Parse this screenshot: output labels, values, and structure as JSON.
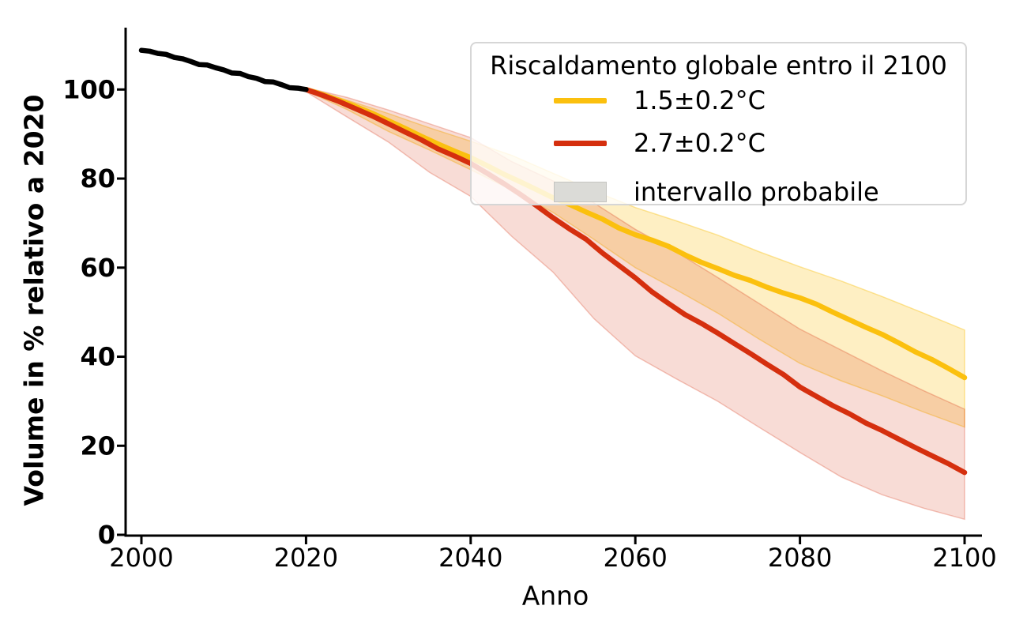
{
  "chart_data": {
    "type": "line",
    "title": "",
    "xlabel": "Anno",
    "ylabel": "Volume in % relativo a 2020",
    "xlim": [
      1998,
      2102
    ],
    "ylim": [
      0,
      114
    ],
    "x_ticks": [
      2000,
      2020,
      2040,
      2060,
      2080,
      2100
    ],
    "y_ticks": [
      0,
      20,
      40,
      60,
      80,
      100
    ],
    "grid": false,
    "axis_color": "#000000",
    "legend": {
      "title": "Riscaldamento globale entro il 2100",
      "position": "upper right",
      "entries": [
        {
          "label": "1.5±0.2°C",
          "type": "line",
          "color": "#FBC00E"
        },
        {
          "label": "2.7±0.2°C",
          "type": "line",
          "color": "#D52F0E"
        },
        {
          "label": "intervallo probabile",
          "type": "patch",
          "color": "#DBDBD7",
          "edge_color": "#C4C4C0"
        }
      ]
    },
    "series": [
      {
        "name": "volume osservato 2000-2020",
        "color": "#000000",
        "x": [
          2000,
          2001,
          2002,
          2003,
          2004,
          2005,
          2006,
          2007,
          2008,
          2009,
          2010,
          2011,
          2012,
          2013,
          2014,
          2015,
          2016,
          2017,
          2018,
          2019,
          2020
        ],
        "y": [
          108.8,
          108.6,
          108.1,
          107.9,
          107.2,
          106.9,
          106.3,
          105.6,
          105.5,
          104.9,
          104.4,
          103.7,
          103.6,
          102.9,
          102.5,
          101.8,
          101.7,
          101.1,
          100.4,
          100.3,
          100.0
        ]
      },
      {
        "name": "proiezione 1.5±0.2°C",
        "color": "#FBC00E",
        "x": [
          2020,
          2022,
          2024,
          2026,
          2028,
          2030,
          2032,
          2034,
          2036,
          2038,
          2040,
          2042,
          2044,
          2046,
          2048,
          2050,
          2052,
          2054,
          2056,
          2058,
          2060,
          2062,
          2064,
          2066,
          2068,
          2070,
          2072,
          2074,
          2076,
          2078,
          2080,
          2082,
          2084,
          2086,
          2088,
          2090,
          2092,
          2094,
          2096,
          2098,
          2100
        ],
        "y": [
          100.0,
          98.9,
          97.6,
          96.2,
          94.7,
          93.0,
          91.3,
          89.5,
          87.8,
          86.2,
          84.7,
          82.9,
          81.0,
          79.3,
          77.5,
          75.7,
          74.2,
          72.5,
          70.9,
          68.9,
          67.4,
          66.2,
          64.8,
          62.9,
          61.2,
          59.8,
          58.3,
          57.1,
          55.6,
          54.3,
          53.2,
          51.8,
          50.0,
          48.3,
          46.6,
          45.0,
          43.1,
          41.1,
          39.4,
          37.4,
          35.3
        ],
        "band": {
          "x": [
            2020,
            2025,
            2030,
            2035,
            2040,
            2045,
            2050,
            2055,
            2060,
            2065,
            2070,
            2075,
            2080,
            2085,
            2090,
            2095,
            2100
          ],
          "upper": [
            100.3,
            97.6,
            94.6,
            91.4,
            88.4,
            85.2,
            81.2,
            77.2,
            73.5,
            70.5,
            67.3,
            63.6,
            60.2,
            57.0,
            53.5,
            49.8,
            46.0
          ],
          "lower": [
            99.7,
            95.5,
            90.6,
            86.4,
            82.0,
            77.4,
            72.4,
            66.3,
            60.0,
            55.0,
            49.8,
            44.0,
            38.5,
            34.6,
            31.2,
            27.6,
            24.2
          ],
          "fill_color": "#FBC00E",
          "fill_opacity": 0.25
        }
      },
      {
        "name": "proiezione 2.7±0.2°C",
        "color": "#D52F0E",
        "x": [
          2020,
          2022,
          2024,
          2026,
          2028,
          2030,
          2032,
          2034,
          2036,
          2038,
          2040,
          2042,
          2044,
          2046,
          2048,
          2050,
          2052,
          2054,
          2056,
          2058,
          2060,
          2062,
          2064,
          2066,
          2068,
          2070,
          2072,
          2074,
          2076,
          2078,
          2080,
          2082,
          2084,
          2086,
          2088,
          2090,
          2092,
          2094,
          2096,
          2098,
          2100
        ],
        "y": [
          100.0,
          98.7,
          97.3,
          95.7,
          94.1,
          92.3,
          90.5,
          88.7,
          86.7,
          85.1,
          83.4,
          81.2,
          78.9,
          76.5,
          73.9,
          71.2,
          68.7,
          66.4,
          63.3,
          60.5,
          57.7,
          54.6,
          52.0,
          49.5,
          47.5,
          45.3,
          43.0,
          40.7,
          38.3,
          36.0,
          33.2,
          31.1,
          29.0,
          27.2,
          25.1,
          23.4,
          21.5,
          19.6,
          17.8,
          16.0,
          14.0
        ],
        "band": {
          "x": [
            2020,
            2025,
            2030,
            2035,
            2040,
            2045,
            2050,
            2055,
            2060,
            2065,
            2070,
            2075,
            2080,
            2085,
            2090,
            2095,
            2100
          ],
          "upper": [
            100.4,
            98.2,
            95.4,
            92.3,
            89.2,
            83.8,
            79.5,
            74.5,
            68.6,
            63.5,
            57.8,
            52.0,
            46.2,
            41.5,
            36.8,
            32.4,
            28.2
          ],
          "lower": [
            99.5,
            93.8,
            88.2,
            81.4,
            76.0,
            67.0,
            59.0,
            48.5,
            40.2,
            35.0,
            30.0,
            24.2,
            18.5,
            13.0,
            9.0,
            6.0,
            3.5
          ],
          "fill_color": "#D52F0E",
          "fill_opacity": 0.17
        }
      }
    ]
  }
}
